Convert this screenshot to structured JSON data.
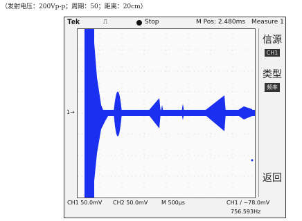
{
  "caption": "（发射电压：200Vp-p；周期：50；距离：20cm）",
  "topbar": {
    "brand": "Tek",
    "trigger_glyph": "⎍",
    "status": "Stop",
    "mpos": "M Pos: 2.480ms",
    "menu": "Measure 1"
  },
  "sidebar": {
    "source_label": "信源",
    "source_value": "CH1",
    "type_label": "类型",
    "type_value": "频率",
    "back_label": "返回"
  },
  "channel_marker": "1→",
  "bottom": {
    "ch1": "CH1  50.0mV",
    "ch2": "CH2  50.0mV",
    "timebase": "M 500μs",
    "trigger": "CH1 ∕ −78.0mV",
    "frequency": "756.593Hz"
  },
  "colors": {
    "trace": "#1a2ff0",
    "frame": "#f2f2f2"
  }
}
